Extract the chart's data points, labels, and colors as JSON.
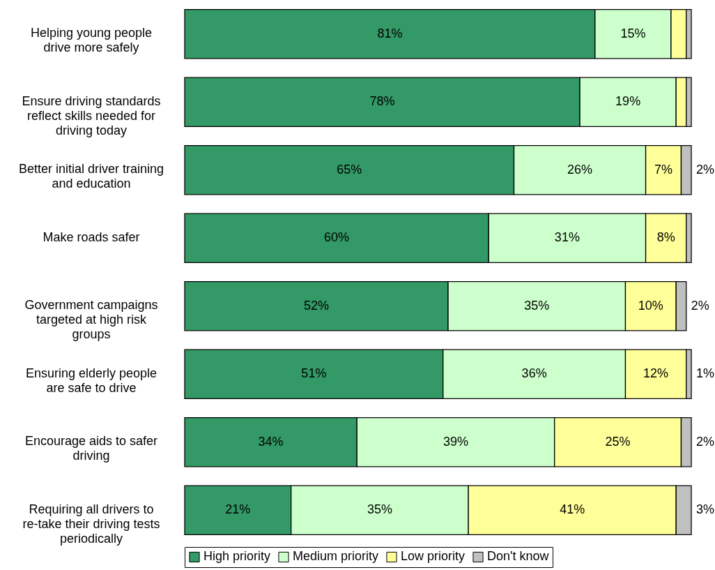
{
  "chart_data": {
    "type": "bar",
    "orientation": "horizontal",
    "stacked": true,
    "legend": "bottom",
    "tick_labels": "y",
    "xlim": [
      0,
      100
    ],
    "categories": [
      "Helping young people drive more safely",
      "Ensure driving standards reflect skills needed for driving today",
      "Better initial driver training and education",
      "Make roads safer",
      "Government campaigns targeted at high risk groups",
      "Ensuring elderly people are safe to drive",
      "Encourage aids to safer driving",
      "Requiring all drivers to re-take their driving tests periodically"
    ],
    "series": [
      {
        "name": "High priority",
        "color": "#339966",
        "values": [
          81,
          78,
          65,
          60,
          52,
          51,
          34,
          21
        ],
        "value_labels": [
          "81%",
          "78%",
          "65%",
          "60%",
          "52%",
          "51%",
          "34%",
          "21%"
        ]
      },
      {
        "name": "Medium priority",
        "color": "#ccffcc",
        "values": [
          15,
          19,
          26,
          31,
          35,
          36,
          39,
          35
        ],
        "value_labels": [
          "15%",
          "19%",
          "26%",
          "31%",
          "35%",
          "36%",
          "39%",
          "35%"
        ]
      },
      {
        "name": "Low priority",
        "color": "#ffff99",
        "values": [
          3,
          2,
          7,
          8,
          10,
          12,
          25,
          41
        ],
        "value_labels": [
          null,
          null,
          "7%",
          "8%",
          "10%",
          "12%",
          "25%",
          "41%"
        ]
      },
      {
        "name": "Don't know",
        "color": "#c0c0c0",
        "values": [
          1,
          1,
          2,
          1,
          2,
          1,
          2,
          3
        ],
        "value_labels": [
          null,
          null,
          "2%",
          null,
          "2%",
          "1%",
          "2%",
          "3%"
        ]
      }
    ]
  }
}
